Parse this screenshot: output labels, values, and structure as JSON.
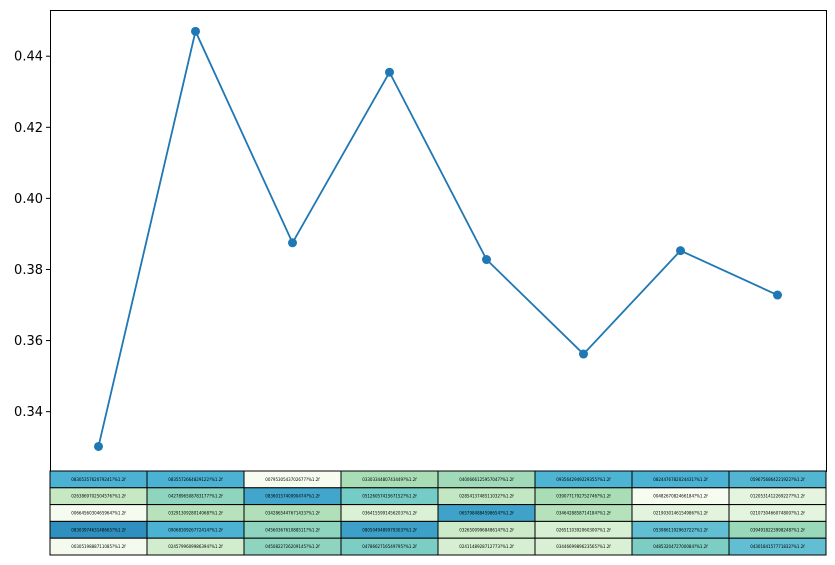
{
  "chart_data": {
    "type": "line",
    "x": [
      0,
      1,
      2,
      3,
      4,
      5,
      6,
      7
    ],
    "values": [
      0.3302,
      0.447,
      0.3875,
      0.4355,
      0.3828,
      0.3562,
      0.3853,
      0.3728
    ],
    "ylim": [
      0.3233,
      0.453
    ],
    "yticks": [
      0.34,
      0.36,
      0.38,
      0.4,
      0.42,
      0.44
    ],
    "ytick_labels": [
      "0.34",
      "0.36",
      "0.38",
      "0.40",
      "0.42",
      "0.44"
    ],
    "line_color": "#1f77b4",
    "grid": false,
    "table": {
      "cells": [
        [
          "0830535762079241?%1.2f",
          "0835572664829122?%1.2f",
          "0079530543702677?%1.2f",
          "0330334480743449?%1.2f",
          "0400666125957047?%1.2f",
          "0935642949229355?%1.2f",
          "0824476782024431?%1.2f",
          "0596756864221922?%1.2f"
        ],
        [
          "0263869702504576?%1.2f",
          "0427896508783177?%1.2f",
          "0836015740090474?%1.2f",
          "0512605741567152?%1.2f",
          "0285413748511032?%1.2f",
          "0390771792752746?%1.2f",
          "0048267082466184?%1.2f",
          "0120531412269227?%1.2f"
        ],
        [
          "0066456030465964?%1.2f",
          "0329130928014068?%1.2f",
          "0342865447671433?%1.2f",
          "0364155991456203?%1.2f",
          "0657984884598654?%1.2f",
          "0346428858714184?%1.2f",
          "0219030146154986?%1.2f",
          "0210730466074800?%1.2f"
        ],
        [
          "0830397463148665?%1.2f",
          "0906830926772414?%1.2f",
          "0456036761088511?%1.2f",
          "0805049489979303?%1.2f",
          "0326500996848614?%1.2f",
          "0265110392060300?%1.2f",
          "0539861192963722?%1.2f",
          "0394918223998248?%1.2f"
        ],
        [
          "0030519888711085?%1.2f",
          "0245799609986394?%1.2f",
          "0450822726209145?%1.2f",
          "0478662716549795?%1.2f",
          "0241148928712773?%1.2f",
          "0344669989623565?%1.2f",
          "0485320472700084?%1.2f",
          "0430184157771832?%1.2f"
        ]
      ],
      "colors": [
        [
          "#4bb2d3",
          "#4bb2d3",
          "#f7fcf0",
          "#a8ddb5",
          "#a0dab8",
          "#4eb4d3",
          "#4bb2d3",
          "#52b5d1"
        ],
        [
          "#c6e9c4",
          "#8ed4bf",
          "#42a6cc",
          "#75cbc6",
          "#c2e7c2",
          "#a8ddb5",
          "#f7fcf0",
          "#e4f4df"
        ],
        [
          "#f5fbef",
          "#b7e2bc",
          "#b0dfb9",
          "#dbf1d5",
          "#3fa2c9",
          "#b5e1bb",
          "#e3f4de",
          "#e4f5df"
        ],
        [
          "#2f90c0",
          "#4bb2d3",
          "#8ed4bf",
          "#3da0c8",
          "#cceac8",
          "#d7efd2",
          "#62bed3",
          "#9ad8ba"
        ],
        [
          "#f4fbee",
          "#d2ecce",
          "#8ed4bf",
          "#7ccdc3",
          "#d6eed1",
          "#d9f0d4",
          "#7ccdc3",
          "#62bed3"
        ]
      ]
    }
  }
}
